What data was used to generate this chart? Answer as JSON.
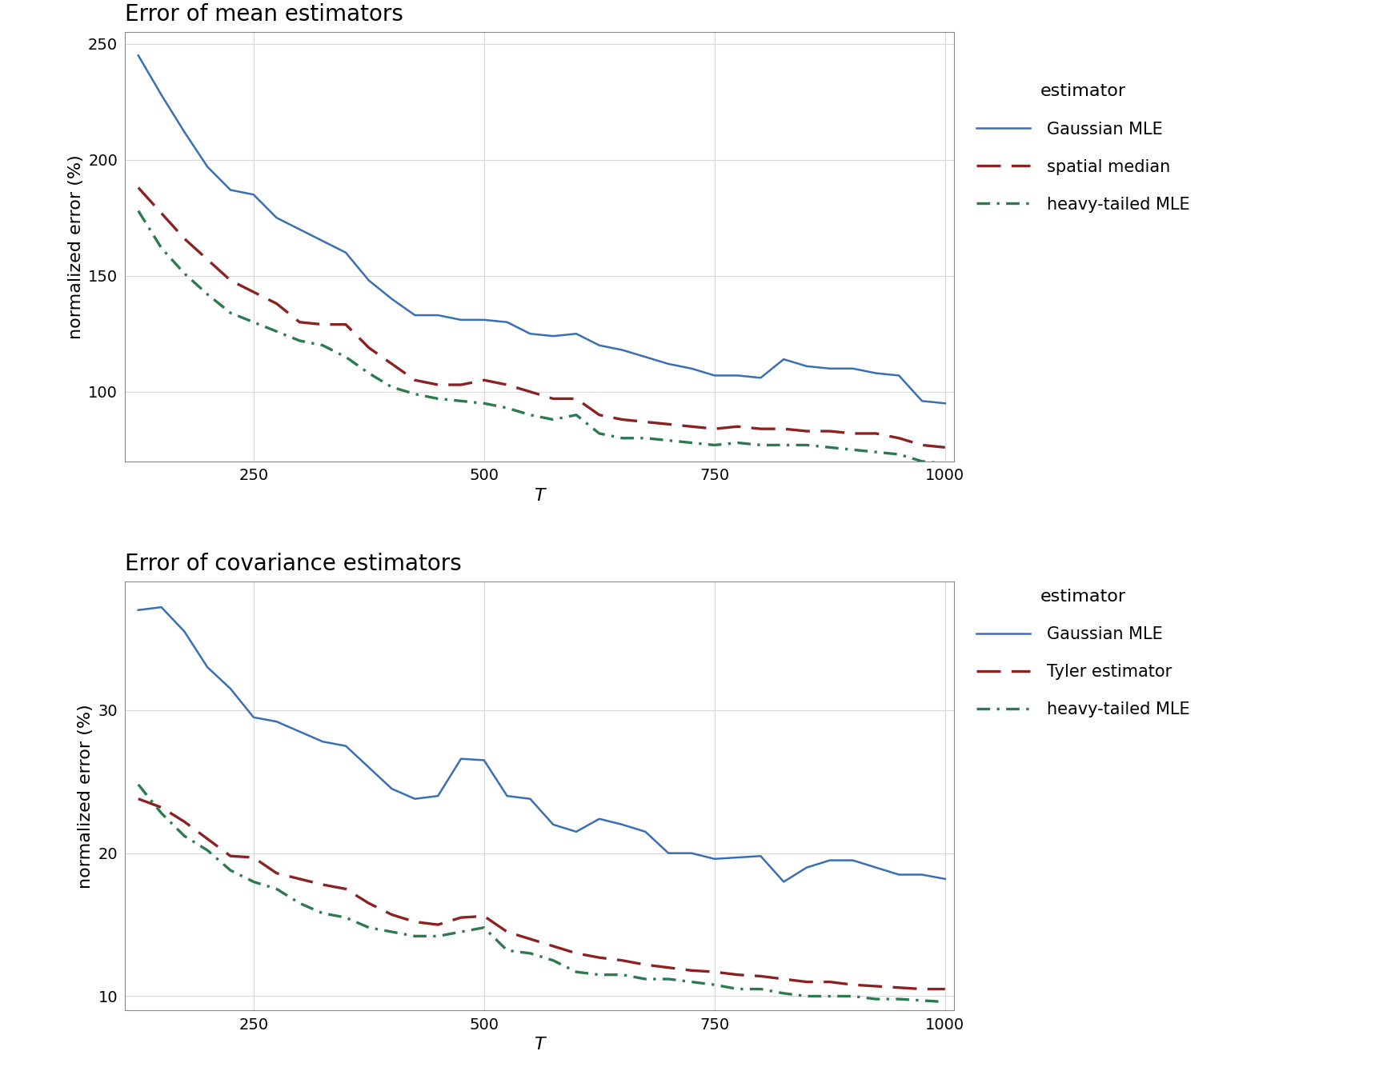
{
  "top_title": "Error of mean estimators",
  "bottom_title": "Error of covariance estimators",
  "xlabel": "T",
  "ylabel": "normalized error (%)",
  "background_color": "#ffffff",
  "plot_bg_color": "#ffffff",
  "grid_color": "#d9d9d9",
  "top": {
    "x": [
      125,
      150,
      175,
      200,
      225,
      250,
      275,
      300,
      325,
      350,
      375,
      400,
      425,
      450,
      475,
      500,
      525,
      550,
      575,
      600,
      625,
      650,
      675,
      700,
      725,
      750,
      775,
      800,
      825,
      850,
      875,
      900,
      925,
      950,
      975,
      1000
    ],
    "gaussian_mle": [
      245,
      228,
      212,
      197,
      187,
      185,
      175,
      170,
      165,
      160,
      148,
      140,
      133,
      133,
      131,
      131,
      130,
      125,
      124,
      125,
      120,
      118,
      115,
      112,
      110,
      107,
      107,
      106,
      114,
      111,
      110,
      110,
      108,
      107,
      96,
      95
    ],
    "spatial_median": [
      188,
      177,
      166,
      157,
      148,
      143,
      138,
      130,
      129,
      129,
      119,
      112,
      105,
      103,
      103,
      105,
      103,
      100,
      97,
      97,
      90,
      88,
      87,
      86,
      85,
      84,
      85,
      84,
      84,
      83,
      83,
      82,
      82,
      80,
      77,
      76
    ],
    "heavy_tailed_mle": [
      178,
      162,
      151,
      142,
      134,
      130,
      126,
      122,
      120,
      115,
      108,
      102,
      99,
      97,
      96,
      95,
      93,
      90,
      88,
      90,
      82,
      80,
      80,
      79,
      78,
      77,
      78,
      77,
      77,
      77,
      76,
      75,
      74,
      73,
      70,
      69
    ],
    "ylim": [
      70,
      255
    ],
    "yticks": [
      100,
      150,
      200,
      250
    ]
  },
  "bottom": {
    "x": [
      125,
      150,
      175,
      200,
      225,
      250,
      275,
      300,
      325,
      350,
      375,
      400,
      425,
      450,
      475,
      500,
      525,
      550,
      575,
      600,
      625,
      650,
      675,
      700,
      725,
      750,
      775,
      800,
      825,
      850,
      875,
      900,
      925,
      950,
      975,
      1000
    ],
    "gaussian_mle": [
      37.0,
      37.2,
      35.5,
      33.0,
      31.5,
      29.5,
      29.2,
      28.5,
      27.8,
      27.5,
      26.0,
      24.5,
      23.8,
      24.0,
      26.6,
      26.5,
      24.0,
      23.8,
      22.0,
      21.5,
      22.4,
      22.0,
      21.5,
      20.0,
      20.0,
      19.6,
      19.7,
      19.8,
      18.0,
      19.0,
      19.5,
      19.5,
      19.0,
      18.5,
      18.5,
      18.2
    ],
    "tyler_estimator": [
      23.8,
      23.2,
      22.2,
      21.0,
      19.8,
      19.7,
      18.6,
      18.2,
      17.8,
      17.5,
      16.5,
      15.7,
      15.2,
      15.0,
      15.5,
      15.6,
      14.5,
      14.0,
      13.5,
      13.0,
      12.7,
      12.5,
      12.2,
      12.0,
      11.8,
      11.7,
      11.5,
      11.4,
      11.2,
      11.0,
      11.0,
      10.8,
      10.7,
      10.6,
      10.5,
      10.5
    ],
    "heavy_tailed_mle": [
      24.8,
      22.8,
      21.2,
      20.2,
      18.8,
      18.0,
      17.5,
      16.5,
      15.8,
      15.5,
      14.8,
      14.5,
      14.2,
      14.2,
      14.5,
      14.8,
      13.2,
      13.0,
      12.5,
      11.7,
      11.5,
      11.5,
      11.2,
      11.2,
      11.0,
      10.8,
      10.5,
      10.5,
      10.2,
      10.0,
      10.0,
      10.0,
      9.8,
      9.8,
      9.7,
      9.6
    ],
    "ylim": [
      9,
      39
    ],
    "yticks": [
      10,
      20,
      30
    ]
  },
  "colors": {
    "gaussian_mle": "#3a6eb5",
    "spatial_median": "#8b2222",
    "tyler_estimator": "#8b2222",
    "heavy_tailed_mle": "#2d7a4f"
  },
  "legend_top": {
    "title": "estimator",
    "entries": [
      "Gaussian MLE",
      "spatial median",
      "heavy-tailed MLE"
    ]
  },
  "legend_bottom": {
    "title": "estimator",
    "entries": [
      "Gaussian MLE",
      "Tyler estimator",
      "heavy-tailed MLE"
    ]
  },
  "xlim": [
    110,
    1010
  ],
  "xticks": [
    250,
    500,
    750,
    1000
  ],
  "title_fontsize": 20,
  "label_fontsize": 16,
  "tick_fontsize": 14,
  "legend_fontsize": 15,
  "legend_title_fontsize": 16
}
